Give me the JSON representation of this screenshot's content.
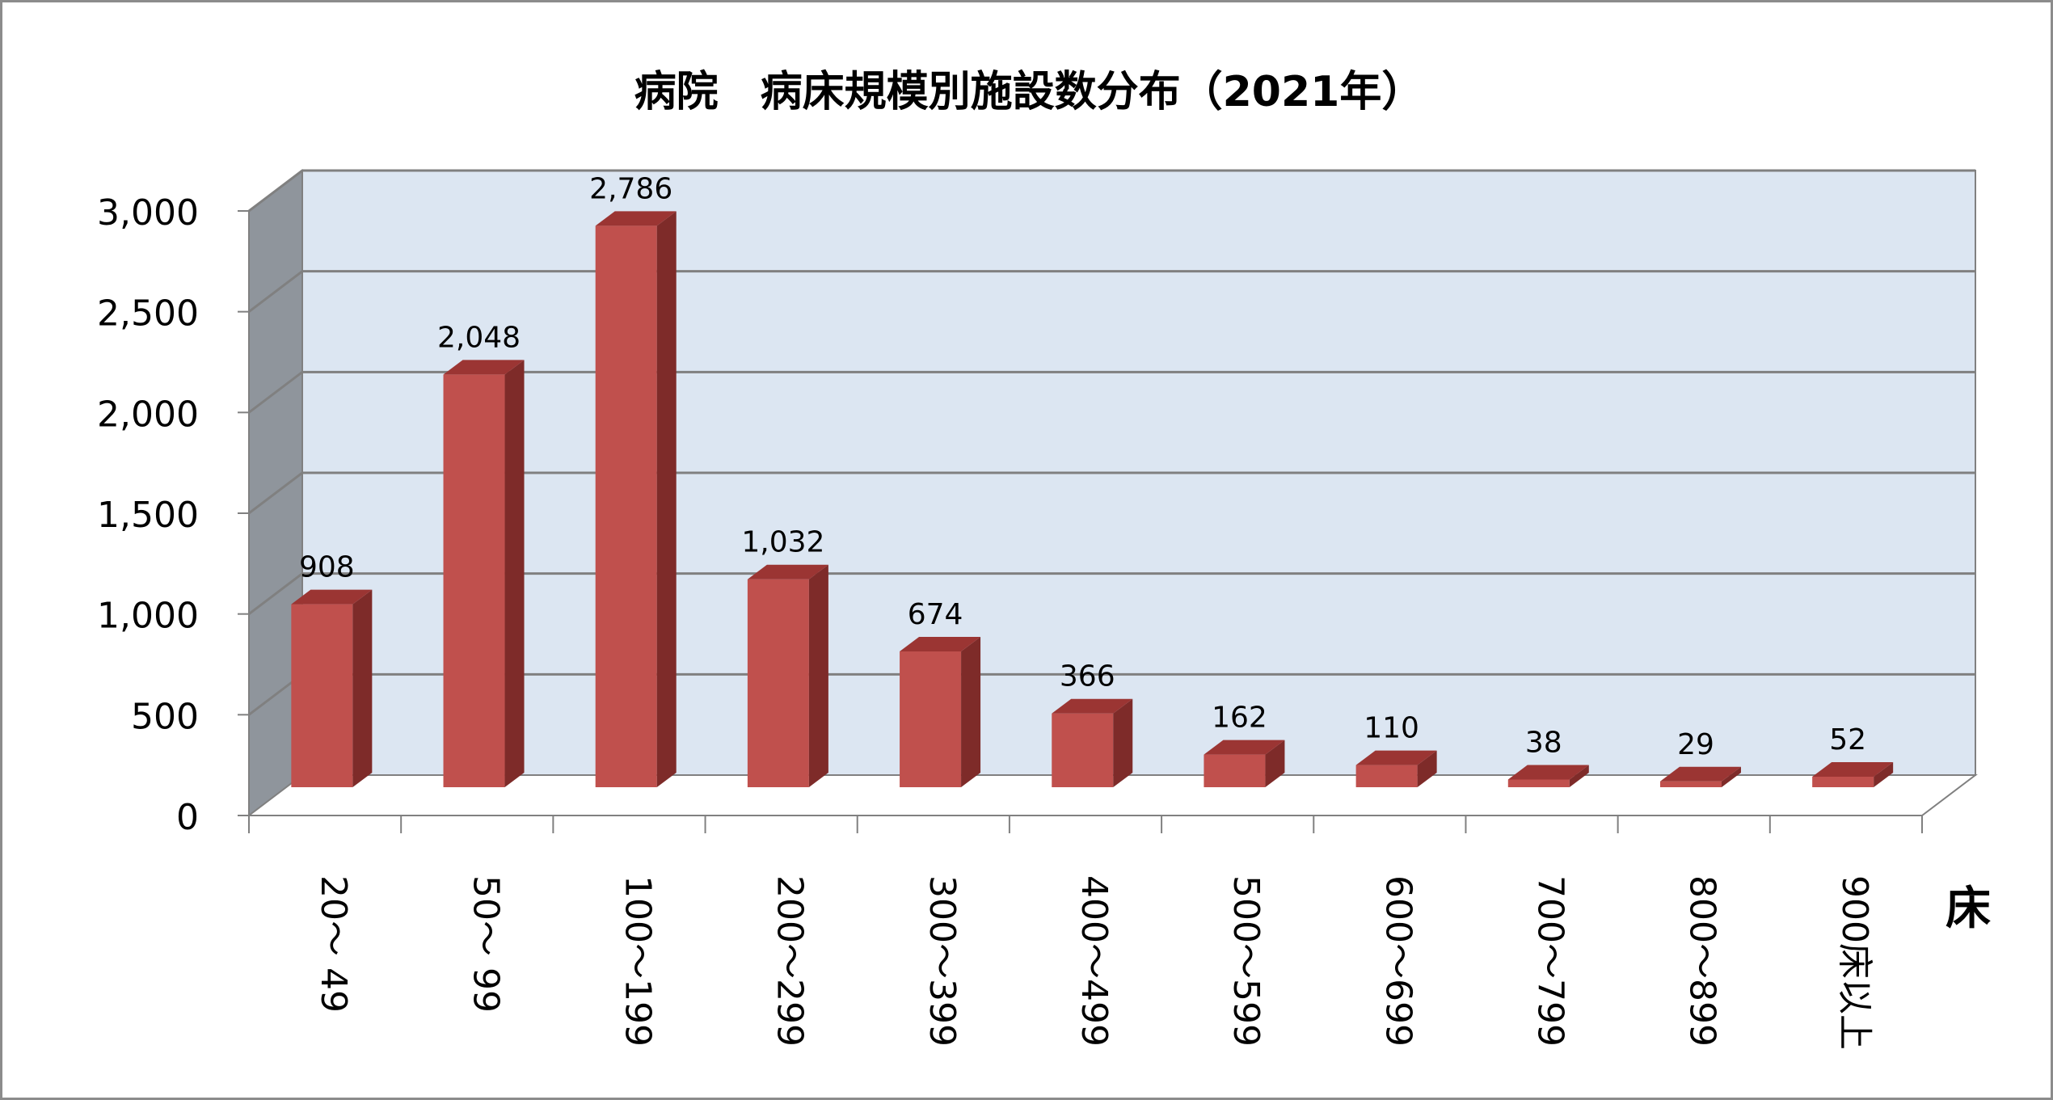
{
  "chart_data": {
    "type": "bar",
    "title": "病院　病床規模別施設数分布（2021年）",
    "categories": [
      "20～ 49",
      "50～ 99",
      "100～199",
      "200～299",
      "300～399",
      "400～499",
      "500～599",
      "600～699",
      "700～799",
      "800～899",
      "900床以上"
    ],
    "values": [
      908,
      2048,
      2786,
      1032,
      674,
      366,
      162,
      110,
      38,
      29,
      52
    ],
    "data_labels": [
      "908",
      "2,048",
      "2,786",
      "1,032",
      "674",
      "366",
      "162",
      "110",
      "38",
      "29",
      "52"
    ],
    "yticks": [
      0,
      500,
      1000,
      1500,
      2000,
      2500,
      3000
    ],
    "ytick_labels": [
      "0",
      "500",
      "1,000",
      "1,500",
      "2,000",
      "2,500",
      "3,000"
    ],
    "ylim": [
      0,
      3000
    ],
    "x_unit_label": "床",
    "grid": true,
    "legend": "none",
    "style": "3d-column",
    "colors": {
      "bar_front": "#c0504d",
      "bar_top": "#9b3533",
      "bar_side": "#7e2b29",
      "wall_back": "#dce6f2",
      "wall_side": "#8f959c",
      "floor": "#ffffff",
      "gridline": "#808080"
    }
  }
}
